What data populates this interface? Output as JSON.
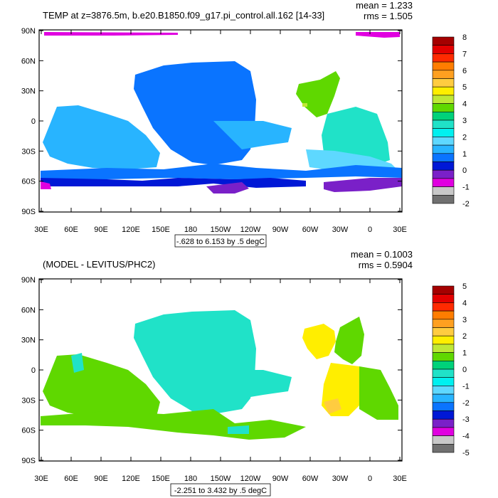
{
  "chart_data": [
    {
      "type": "heatmap",
      "title": "TEMP at z=3876.5m, b.e20.B1850.f09_g17.pi_control.all.162 [14-33]",
      "stats": [
        "mean = 1.233",
        "rms = 1.505"
      ],
      "x_ticks": [
        "30E",
        "60E",
        "90E",
        "120E",
        "150E",
        "180",
        "150W",
        "120W",
        "90W",
        "60W",
        "30W",
        "0",
        "30E"
      ],
      "y_ticks": [
        "90N",
        "60N",
        "30N",
        "0",
        "30S",
        "60S",
        "90S"
      ],
      "range_label": "-.628 to 6.153 by .5 degC",
      "colorbar": {
        "labels": [
          "8",
          "7",
          "6",
          "5",
          "4",
          "3",
          "2",
          "1",
          "0",
          "-1",
          "-2"
        ],
        "colors": [
          "#a50000",
          "#e30000",
          "#ff2a00",
          "#ff7d00",
          "#ffa020",
          "#ffcc40",
          "#ffee00",
          "#bfe836",
          "#5fd800",
          "#00d27a",
          "#20e2c8",
          "#00f0f0",
          "#5ed8ff",
          "#28b4ff",
          "#0a74ff",
          "#0018d6",
          "#7a20c8",
          "#e000e0",
          "#c8c8c8",
          "#707070"
        ]
      },
      "regions": [
        {
          "name": "Pacific basin",
          "color": "#0a74ff"
        },
        {
          "name": "Indian Ocean",
          "color": "#28b4ff"
        },
        {
          "name": "Atlantic",
          "color": "#20e2c8"
        },
        {
          "name": "North Atlantic",
          "color": "#5fd800"
        },
        {
          "name": "Southern Ocean",
          "color": "#0018d6"
        },
        {
          "name": "Weddell/Ross",
          "color": "#7a20c8"
        },
        {
          "name": "Arctic",
          "color": "#e000e0"
        }
      ]
    },
    {
      "type": "heatmap",
      "title": "(MODEL - LEVITUS/PHC2)",
      "stats": [
        "mean = 0.1003",
        "rms = 0.5904"
      ],
      "x_ticks": [
        "30E",
        "60E",
        "90E",
        "120E",
        "150E",
        "180",
        "150W",
        "120W",
        "90W",
        "60W",
        "30W",
        "0",
        "30E"
      ],
      "y_ticks": [
        "90N",
        "60N",
        "30N",
        "0",
        "30S",
        "60S",
        "90S"
      ],
      "range_label": "-2.251 to 3.432 by .5 degC",
      "colorbar": {
        "labels": [
          "5",
          "4",
          "3",
          "2",
          "1",
          "0",
          "-1",
          "-2",
          "-3",
          "-4",
          "-5"
        ],
        "colors": [
          "#a50000",
          "#e30000",
          "#ff2a00",
          "#ff7d00",
          "#ffa020",
          "#ffcc40",
          "#ffee00",
          "#bfe836",
          "#5fd800",
          "#00d27a",
          "#20e2c8",
          "#00f0f0",
          "#5ed8ff",
          "#28b4ff",
          "#0a74ff",
          "#0018d6",
          "#7a20c8",
          "#e000e0",
          "#c8c8c8",
          "#707070"
        ]
      },
      "regions": [
        {
          "name": "Pacific basin",
          "color": "#20e2c8"
        },
        {
          "name": "Indian Ocean",
          "color": "#5fd800"
        },
        {
          "name": "North Atlantic",
          "color": "#ffee00"
        },
        {
          "name": "Southern Ocean",
          "color": "#5fd800"
        }
      ]
    }
  ]
}
